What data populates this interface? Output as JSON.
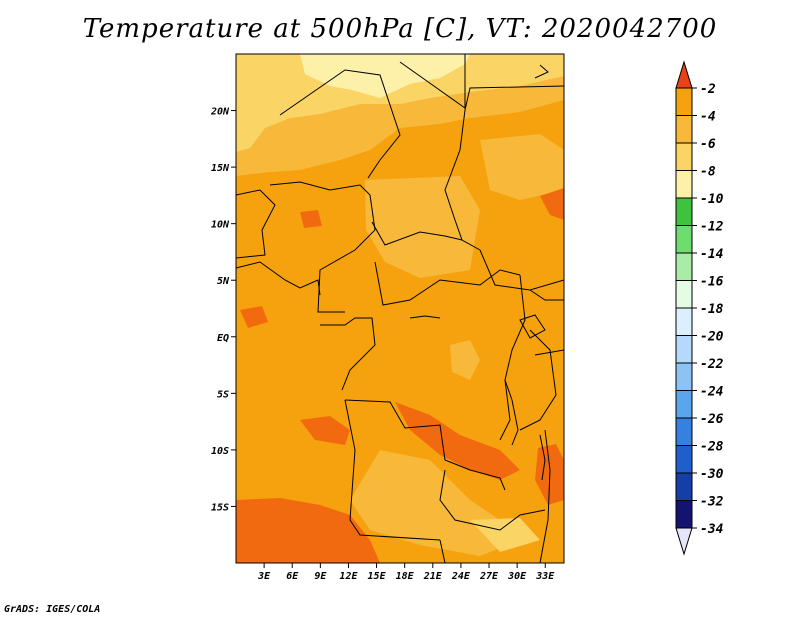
{
  "title": "Temperature at 500hPa [C], VT: 2020042700",
  "credit": "GrADS: IGES/COLA",
  "map": {
    "lon_range": [
      0,
      35
    ],
    "lat_range": [
      -20,
      25
    ],
    "lat_ticks": [
      {
        "v": 20,
        "label": "20N"
      },
      {
        "v": 15,
        "label": "15N"
      },
      {
        "v": 10,
        "label": "10N"
      },
      {
        "v": 5,
        "label": "5N"
      },
      {
        "v": 0,
        "label": "EQ"
      },
      {
        "v": -5,
        "label": "5S"
      },
      {
        "v": -10,
        "label": "10S"
      },
      {
        "v": -15,
        "label": "15S"
      }
    ],
    "lon_ticks": [
      {
        "v": 3,
        "label": "3E"
      },
      {
        "v": 6,
        "label": "6E"
      },
      {
        "v": 9,
        "label": "9E"
      },
      {
        "v": 12,
        "label": "12E"
      },
      {
        "v": 15,
        "label": "15E"
      },
      {
        "v": 18,
        "label": "18E"
      },
      {
        "v": 21,
        "label": "21E"
      },
      {
        "v": 24,
        "label": "24E"
      },
      {
        "v": 27,
        "label": "27E"
      },
      {
        "v": 30,
        "label": "30E"
      },
      {
        "v": 33,
        "label": "33E"
      }
    ],
    "field_colors": {
      "warm_-4_-2": "#f26a10",
      "band_-6_-4": "#f6a20e",
      "band_-8_-6": "#f8b83a",
      "band_-10_-8": "#fad566",
      "band_-12_-10": "#fdf0a8"
    }
  },
  "colorbar": {
    "labels": [
      "-2",
      "-4",
      "-6",
      "-8",
      "-10",
      "-12",
      "-14",
      "-16",
      "-18",
      "-20",
      "-22",
      "-24",
      "-26",
      "-28",
      "-30",
      "-32",
      "-34"
    ],
    "colors": [
      "#f26a10",
      "#f6a20e",
      "#f8b83a",
      "#fad566",
      "#fdf0a8",
      "#3fc23f",
      "#6fdc6f",
      "#a8ecA8",
      "#e4fbe4",
      "#dcefff",
      "#b4d9fb",
      "#8cc2f4",
      "#5aa5ec",
      "#3580e0",
      "#1f5fcc",
      "#163ea8",
      "#141470"
    ],
    "over_color": "#e8421a",
    "under_color": "#e4e4fa"
  }
}
